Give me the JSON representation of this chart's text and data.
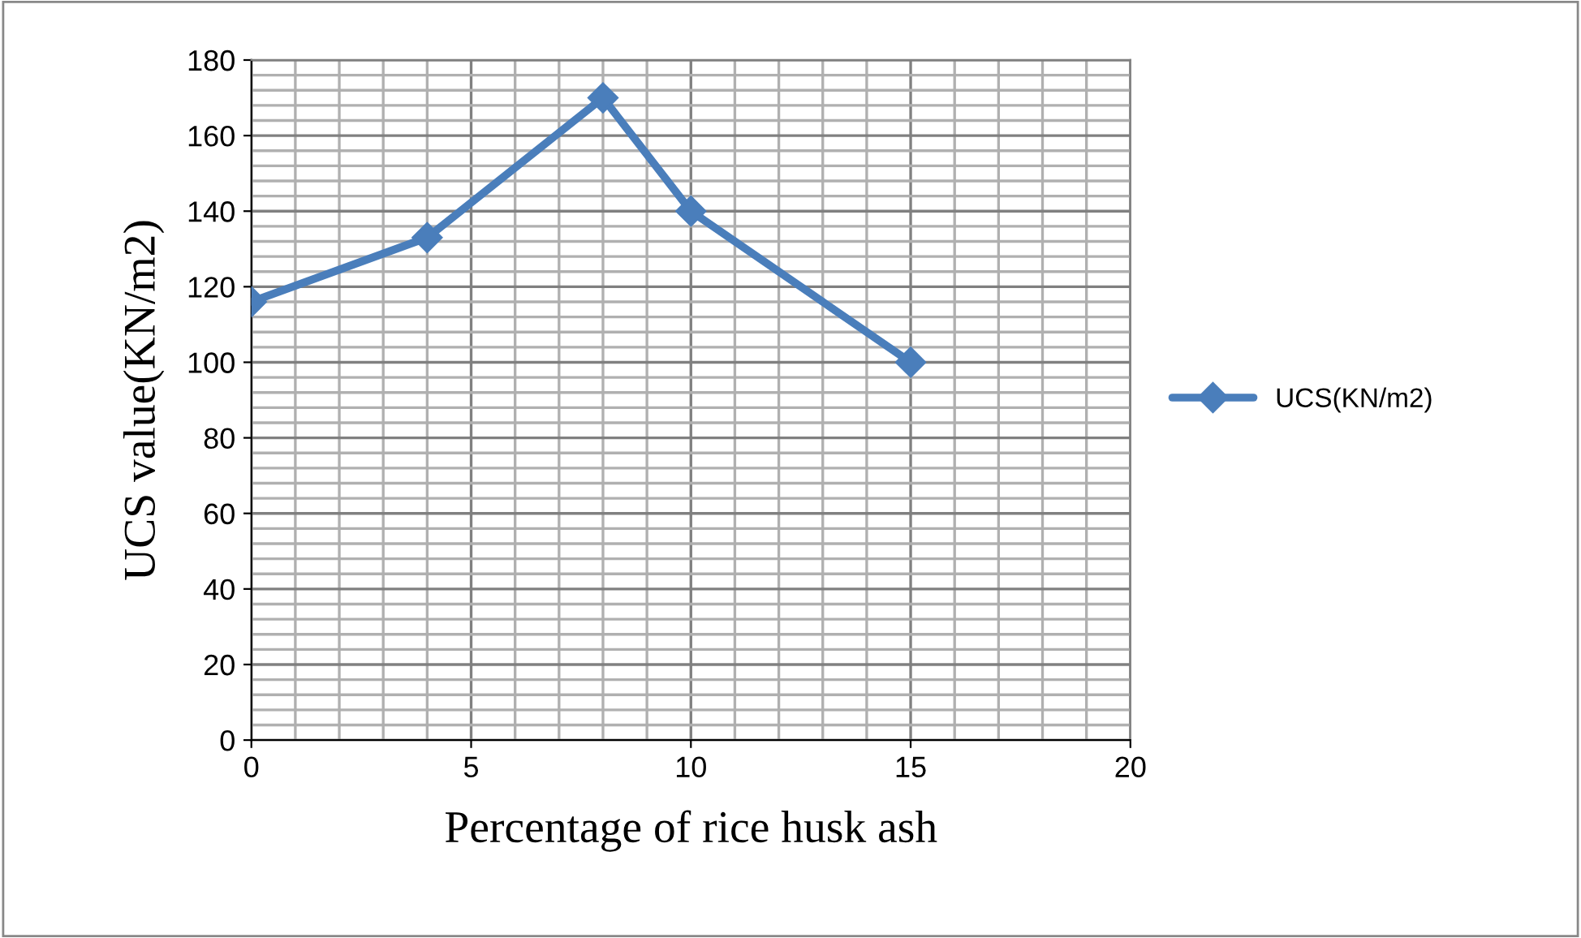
{
  "chart_data": {
    "type": "line",
    "xlabel": "Percentage of rice husk ash",
    "ylabel": "UCS value(KN/m2)",
    "x": [
      0,
      4,
      8,
      10,
      15
    ],
    "series": [
      {
        "name": "UCS(KN/m2)",
        "color": "#4a7ebb",
        "values": [
          116,
          133,
          170,
          140,
          100
        ]
      }
    ],
    "xlim": [
      0,
      20
    ],
    "xticks": [
      0,
      5,
      10,
      15,
      20
    ],
    "ylim": [
      0,
      180
    ],
    "yticks": [
      0,
      20,
      40,
      60,
      80,
      100,
      120,
      140,
      160,
      180
    ],
    "grid": true,
    "legend": "right",
    "marker": "diamond",
    "line_style": "solid"
  }
}
